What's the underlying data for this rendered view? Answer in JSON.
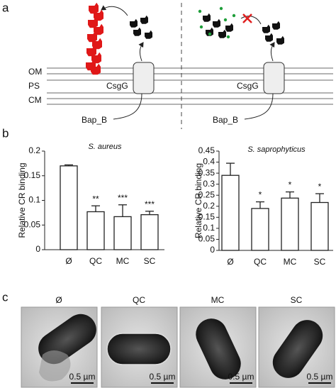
{
  "panel_labels": [
    "a",
    "b",
    "c"
  ],
  "diagram": {
    "membranes": [
      "OM",
      "PS",
      "CM"
    ],
    "pore_label": "CsgG",
    "secreted_label": "Bap_B"
  },
  "chart_data": [
    {
      "type": "bar",
      "title": "S. aureus",
      "y_label": "Relative CR binding",
      "categories": [
        "Ø",
        "QC",
        "MC",
        "SC"
      ],
      "values": [
        0.17,
        0.077,
        0.067,
        0.071
      ],
      "errors": [
        0.002,
        0.012,
        0.024,
        0.007
      ],
      "annotations": [
        null,
        "**",
        "***",
        "***"
      ],
      "color": "#ffffff",
      "ylim": [
        0,
        0.2
      ],
      "yticks": [
        0,
        0.05,
        0.1,
        0.15,
        0.2
      ],
      "grid": false
    },
    {
      "type": "bar",
      "title": "S. saprophyticus",
      "y_label": "Relative CR binding",
      "categories": [
        "Ø",
        "QC",
        "MC",
        "SC"
      ],
      "values": [
        0.34,
        0.19,
        0.237,
        0.217
      ],
      "errors": [
        0.055,
        0.03,
        0.028,
        0.04
      ],
      "annotations": [
        null,
        "*",
        "*",
        "*"
      ],
      "color": "#ffffff",
      "ylim": [
        0,
        0.45
      ],
      "yticks": [
        0,
        0.05,
        0.1,
        0.15,
        0.2,
        0.25,
        0.3,
        0.35,
        0.4,
        0.45
      ],
      "grid": false
    }
  ],
  "micrographs": {
    "labels": [
      "Ø",
      "QC",
      "MC",
      "SC"
    ],
    "scale_bar": "0.5 µm"
  }
}
